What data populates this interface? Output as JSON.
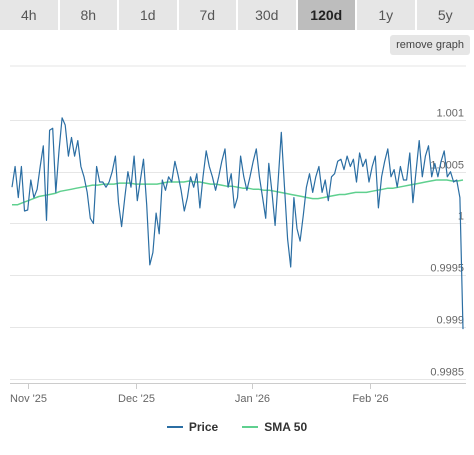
{
  "tabs": [
    {
      "label": "4h"
    },
    {
      "label": "8h"
    },
    {
      "label": "1d"
    },
    {
      "label": "7d"
    },
    {
      "label": "30d"
    },
    {
      "label": "120d",
      "active": true
    },
    {
      "label": "1y"
    },
    {
      "label": "5y"
    }
  ],
  "remove_graph_label": "remove graph",
  "colors": {
    "price": "#2b6ea3",
    "sma": "#5fd08f",
    "grid": "#e6e6e6",
    "tab_active": "#bdbdbd",
    "tab": "#e6e6e6"
  },
  "chart_data": {
    "type": "line",
    "x_tick_labels": [
      "Nov '25",
      "Dec '25",
      "Jan '26",
      "Feb '26"
    ],
    "y_tick_labels": [
      "1.001",
      "1.0005",
      "1",
      "0.9995",
      "0.999",
      "0.9985"
    ],
    "y_ticks": [
      1.001,
      1.0005,
      1.0,
      0.9995,
      0.999,
      0.9985
    ],
    "ylim": [
      0.99846,
      1.00152
    ],
    "grid": true,
    "legend_position": "bottom",
    "series": [
      {
        "name": "Price",
        "values": [
          1.00035,
          1.00055,
          1.00025,
          1.00055,
          1.00012,
          1.00013,
          1.00042,
          1.00025,
          1.00033,
          1.00055,
          1.00075,
          1.00003,
          1.0009,
          1.00092,
          1.0003,
          1.0007,
          1.00102,
          1.00095,
          1.00065,
          1.00083,
          1.00065,
          1.0008,
          1.00055,
          1.00045,
          1.0003,
          1.00005,
          1.0,
          1.00055,
          1.0004,
          1.0004,
          1.00035,
          1.0004,
          1.0005,
          1.00065,
          1.0002,
          0.99997,
          1.00025,
          1.0005,
          1.00035,
          1.00065,
          1.00022,
          1.00042,
          1.00062,
          1.00018,
          0.9996,
          0.99972,
          1.0001,
          0.9999,
          1.00042,
          1.00032,
          1.00045,
          1.0004,
          1.0006,
          1.00047,
          1.00032,
          1.00012,
          1.00025,
          1.00045,
          1.00035,
          1.00048,
          1.00015,
          1.00045,
          1.0007,
          1.00055,
          1.00045,
          1.00032,
          1.00045,
          1.0006,
          1.00072,
          1.00035,
          1.00048,
          1.00015,
          1.00025,
          1.00065,
          1.00045,
          1.00032,
          1.00045,
          1.0006,
          1.00072,
          1.00045,
          1.00025,
          1.00005,
          1.00058,
          1.0003,
          0.99998,
          1.00042,
          1.00088,
          1.00035,
          0.99985,
          0.99958,
          1.00025,
          0.99995,
          0.99983,
          1.00008,
          1.00035,
          1.00048,
          1.0003,
          1.00045,
          1.00055,
          1.0003,
          1.00042,
          1.00022,
          1.00045,
          1.00048,
          1.0006,
          1.00062,
          1.00052,
          1.00065,
          1.00055,
          1.00062,
          1.0004,
          1.00068,
          1.00055,
          1.00062,
          1.0004,
          1.00055,
          1.00065,
          1.00015,
          1.00045,
          1.0006,
          1.00072,
          1.00045,
          1.00052,
          1.00035,
          1.00055,
          1.00042,
          1.00042,
          1.00068,
          1.0002,
          1.0005,
          1.0008,
          1.00045,
          1.00065,
          1.00075,
          1.00045,
          1.00058,
          1.00045,
          1.0006,
          1.0007,
          1.00045,
          1.0005,
          1.0004,
          1.00042,
          1.00025,
          0.99898
        ]
      },
      {
        "name": "SMA 50",
        "values": [
          1.00018,
          1.00018,
          1.0002,
          1.00022,
          1.00024,
          1.00026,
          1.00027,
          1.00028,
          1.00029,
          1.00031,
          1.00032,
          1.00033,
          1.00034,
          1.00035,
          1.00036,
          1.00037,
          1.00037,
          1.00038,
          1.00038,
          1.00038,
          1.00039,
          1.00039,
          1.00039,
          1.00038,
          1.00038,
          1.00038,
          1.00038,
          1.00038,
          1.00039,
          1.0004,
          1.0004,
          1.0004,
          1.0004,
          1.00041,
          1.0004,
          1.0004,
          1.00039,
          1.00038,
          1.00038,
          1.00037,
          1.00036,
          1.00036,
          1.00035,
          1.00034,
          1.00034,
          1.00033,
          1.00033,
          1.00032,
          1.00032,
          1.00031,
          1.0003,
          1.00029,
          1.00028,
          1.00027,
          1.00026,
          1.00025,
          1.00024,
          1.00024,
          1.00025,
          1.00026,
          1.00027,
          1.00028,
          1.00028,
          1.00029,
          1.0003,
          1.0003,
          1.0003,
          1.00031,
          1.00032,
          1.00033,
          1.00034,
          1.00034,
          1.00035,
          1.00036,
          1.00037,
          1.00038,
          1.00039,
          1.0004,
          1.00041,
          1.00042,
          1.00042,
          1.00042,
          1.00041,
          1.00041,
          1.00042
        ]
      }
    ]
  }
}
